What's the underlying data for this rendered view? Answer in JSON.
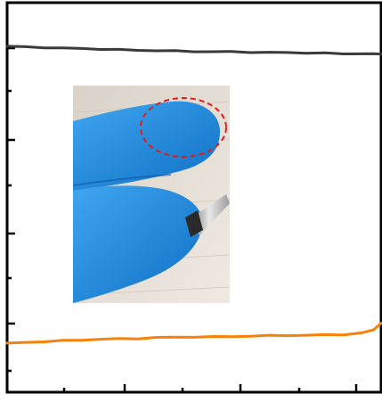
{
  "chart_data": {
    "type": "line",
    "title": "",
    "xlabel": "",
    "ylabel": "",
    "xlim": [
      0,
      100
    ],
    "ylim": [
      0,
      100
    ],
    "grid": false,
    "legend": "none",
    "x": [
      0,
      5,
      10,
      15,
      20,
      25,
      30,
      35,
      40,
      45,
      50,
      55,
      60,
      65,
      70,
      75,
      80,
      85,
      90,
      95,
      98,
      100
    ],
    "series": [
      {
        "color": "#3a3a3a",
        "values": [
          88.8,
          88.6,
          88.5,
          88.3,
          88.2,
          88.1,
          87.9,
          87.8,
          87.7,
          87.6,
          87.5,
          87.4,
          87.4,
          87.3,
          87.2,
          87.2,
          87.1,
          87.0,
          86.9,
          86.9,
          86.8,
          86.9
        ]
      },
      {
        "color": "#f7820a",
        "values": [
          12.5,
          12.8,
          13.0,
          13.2,
          13.4,
          13.6,
          13.7,
          13.8,
          14.0,
          14.1,
          14.2,
          14.2,
          14.3,
          14.4,
          14.5,
          14.6,
          14.6,
          14.7,
          14.8,
          15.2,
          16.0,
          17.8
        ]
      }
    ]
  },
  "inset": {
    "description_icon": "gloved-finger-icon",
    "highlight_color": "#e21b1b",
    "glove_color": "#1f8fe0"
  }
}
